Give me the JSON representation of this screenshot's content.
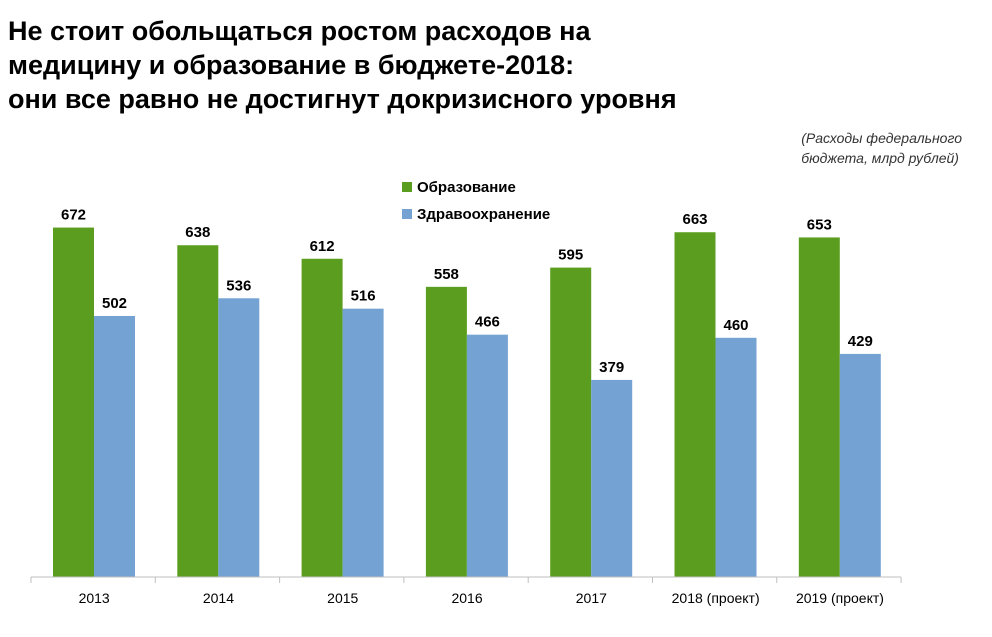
{
  "title_lines": [
    "Не стоит обольщаться ростом расходов на",
    "медицину и образование в бюджете-2018:",
    "они все равно не достигнут докризисного уровня"
  ],
  "subtitle_lines": [
    "(Расходы федерального",
    "бюджета, млрд рублей)"
  ],
  "colors": {
    "education": "#5b9e1f",
    "health": "#74a2d3"
  },
  "chart_data": {
    "type": "bar",
    "title": "Не стоит обольщаться ростом расходов на медицину и образование в бюджете-2018: они все равно не достигнут докризисного уровня",
    "subtitle": "(Расходы федерального бюджета, млрд рублей)",
    "categories": [
      "2013",
      "2014",
      "2015",
      "2016",
      "2017",
      "2018 (проект)",
      "2019 (проект)"
    ],
    "series": [
      {
        "name": "Образование",
        "values": [
          672,
          638,
          612,
          558,
          595,
          663,
          653
        ]
      },
      {
        "name": "Здравоохранение",
        "values": [
          502,
          536,
          516,
          466,
          379,
          460,
          429
        ]
      }
    ],
    "xlabel": "",
    "ylabel": "",
    "ylim": [
      0,
      700
    ],
    "legend": "top-center",
    "grid": false
  }
}
